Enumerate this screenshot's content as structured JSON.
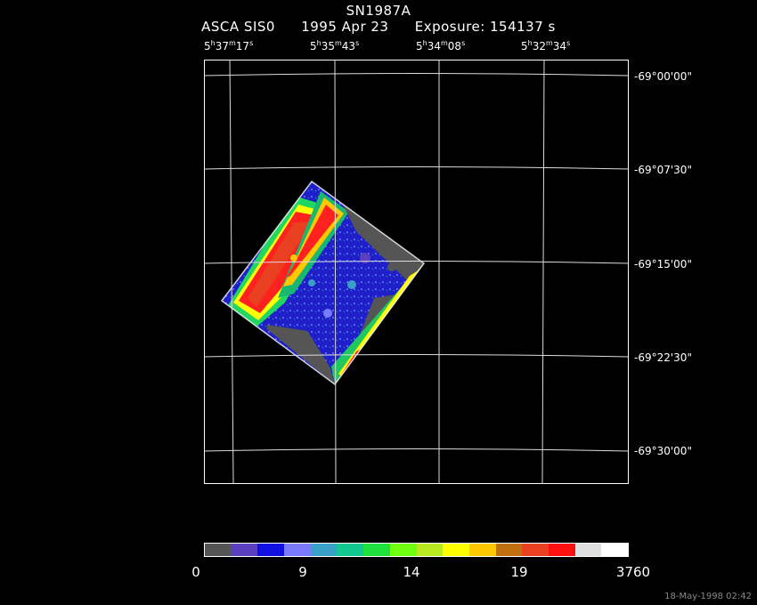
{
  "header": {
    "title": "SN1987A",
    "instrument": "ASCA SIS0",
    "date": "1995 Apr 23",
    "exposure": "Exposure: 154137 s"
  },
  "ra_labels": [
    {
      "h": "5",
      "m": "37",
      "s": "17"
    },
    {
      "h": "5",
      "m": "35",
      "s": "43"
    },
    {
      "h": "5",
      "m": "34",
      "s": "08"
    },
    {
      "h": "5",
      "m": "32",
      "s": "34"
    }
  ],
  "dec_labels": [
    "-69°00'00\"",
    "-69°07'30\"",
    "-69°15'00\"",
    "-69°22'30\"",
    "-69°30'00\""
  ],
  "colorbar": {
    "colors": [
      "#555555",
      "#5a3fbf",
      "#1010e0",
      "#7a7aff",
      "#3aa0c8",
      "#12c890",
      "#20e040",
      "#70ff10",
      "#b8e820",
      "#ffff00",
      "#ffc800",
      "#c07010",
      "#e84020",
      "#ff1010",
      "#e0e0e0",
      "#ffffff"
    ],
    "labels": [
      "0",
      "9",
      "14",
      "19",
      "3760"
    ]
  },
  "timestamp": "18-May-1998 02:42"
}
